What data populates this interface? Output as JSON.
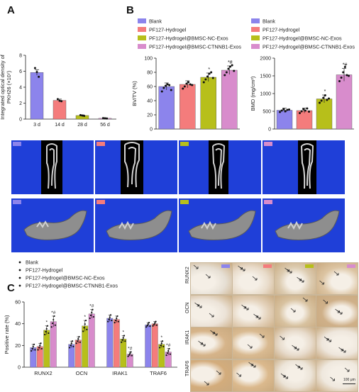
{
  "panels": {
    "A": "A",
    "B": "B",
    "C": "C"
  },
  "groups": [
    "Blank",
    "PF127-Hydrogel",
    "PF127-Hydrogel@BMSC-NC-Exos",
    "PF127-Hydrogel@BMSC-CTNNB1-Exos"
  ],
  "colors": {
    "blank": "#8c84ec",
    "pf127": "#f47c7c",
    "nc": "#b7bf1a",
    "ctnnb1": "#d88ccc",
    "ct_bg": "#1f3fd8",
    "a_bar": "#8c84ec"
  },
  "chart_data": [
    {
      "id": "A",
      "type": "bar",
      "categories": [
        "3 d",
        "14 d",
        "28 d",
        "56 d"
      ],
      "values": [
        5.85,
        2.35,
        0.45,
        0.1
      ],
      "errors": [
        0.35,
        0.15,
        0.08,
        0.04
      ],
      "points": [
        [
          6.4,
          5.9,
          5.3
        ],
        [
          2.5,
          2.3,
          2.25
        ],
        [
          0.5,
          0.45,
          0.4
        ],
        [
          0.12,
          0.1,
          0.08
        ]
      ],
      "ylabel_line1": "Integrated optical density of",
      "ylabel_line2": "PKH26 (×10⁷)",
      "ylim": [
        0,
        8
      ],
      "yticks": [
        0,
        2,
        4,
        6,
        8
      ],
      "bar_colors": [
        "#8c84ec",
        "#f47c7c",
        "#b7bf1a",
        "#d88ccc"
      ]
    },
    {
      "id": "B1",
      "type": "bar",
      "categories": [
        "Blank",
        "PF127-Hydrogel",
        "PF127-Hydrogel@BMSC-NC-Exos",
        "PF127-Hydrogel@BMSC-CTNNB1-Exos"
      ],
      "values": [
        60,
        63,
        73,
        83
      ],
      "errors": [
        5,
        5,
        6,
        6
      ],
      "points": [
        [
          53,
          58,
          61,
          63,
          62,
          55
        ],
        [
          57,
          60,
          64,
          66,
          63,
          62
        ],
        [
          66,
          70,
          74,
          78,
          80,
          72
        ],
        [
          76,
          80,
          85,
          88,
          90,
          82
        ]
      ],
      "annotations": [
        "",
        "",
        "*",
        "*#"
      ],
      "ylabel": "BV/TV (%)",
      "ylim": [
        0,
        100
      ],
      "yticks": [
        0,
        20,
        40,
        60,
        80,
        100
      ]
    },
    {
      "id": "B2",
      "type": "bar",
      "categories": [
        "Blank",
        "PF127-Hydrogel",
        "PF127-Hydrogel@BMSC-NC-Exos",
        "PF127-Hydrogel@BMSC-CTNNB1-Exos"
      ],
      "values": [
        530,
        520,
        850,
        1530
      ],
      "errors": [
        60,
        70,
        110,
        180
      ],
      "points": [
        [
          480,
          520,
          560,
          500,
          540,
          550
        ],
        [
          450,
          500,
          560,
          520,
          580,
          490
        ],
        [
          740,
          800,
          880,
          950,
          820,
          860
        ],
        [
          1350,
          1450,
          1600,
          1750,
          1520,
          1500
        ]
      ],
      "annotations": [
        "",
        "",
        "*",
        "*#"
      ],
      "ylabel": "BMD (mg/cm²)",
      "ylim": [
        0,
        2000
      ],
      "yticks": [
        0,
        500,
        1000,
        1500,
        2000
      ]
    },
    {
      "id": "C",
      "type": "bar",
      "categories": [
        "RUNX2",
        "OCN",
        "IRAK1",
        "TRAF6"
      ],
      "series": [
        {
          "name": "Blank",
          "values": [
            18,
            21,
            45,
            39
          ],
          "errors": [
            3,
            3,
            3,
            2
          ]
        },
        {
          "name": "PF127-Hydrogel",
          "values": [
            19,
            25,
            44,
            40
          ],
          "errors": [
            3,
            3,
            3,
            2
          ]
        },
        {
          "name": "PF127-Hydrogel@BMSC-NC-Exos",
          "values": [
            34,
            38,
            26,
            21
          ],
          "errors": [
            4,
            5,
            3,
            3
          ]
        },
        {
          "name": "PF127-Hydrogel@BMSC-CTNNB1-Exos",
          "values": [
            42,
            49,
            12,
            14
          ],
          "errors": [
            5,
            4,
            2,
            3
          ]
        }
      ],
      "annotations": [
        [
          "",
          "",
          "*",
          "*#"
        ],
        [
          "",
          "",
          "*",
          "*#"
        ],
        [
          "",
          "",
          "*",
          "*#"
        ],
        [
          "",
          "",
          "*",
          "*#"
        ]
      ],
      "ylabel": "Positive rate (%)",
      "ylim": [
        0,
        60
      ],
      "yticks": [
        0,
        20,
        40,
        60
      ]
    }
  ],
  "histology": {
    "row_labels": [
      "RUNX2",
      "OCN",
      "IRAK1",
      "TRAF6"
    ],
    "scale_label": "100 μm"
  }
}
